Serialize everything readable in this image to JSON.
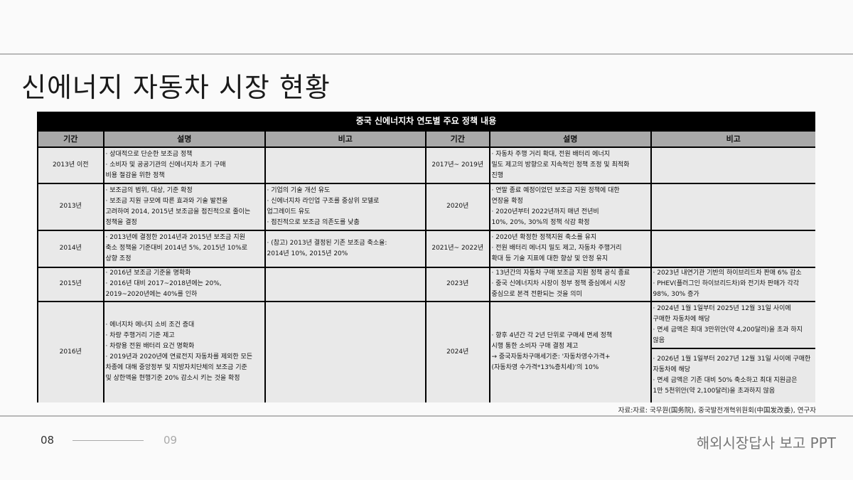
{
  "title": "신에너지 자동차 시장 현황",
  "table": {
    "caption": "중국 신에너지차 연도별 주요 정책 내용",
    "headers": [
      "기간",
      "설명",
      "비고",
      "기간",
      "설명",
      "비고"
    ],
    "left_rows": [
      {
        "period": "2013년 이전",
        "desc": [
          "· 상대적으로 단순한 보조금 정책",
          "· 소비자 및 공공기관의 신에너지차 초기 구매",
          "비용 절감을 위한 정책"
        ],
        "note": []
      },
      {
        "period": "2013년",
        "desc": [
          "· 보조금의 범위, 대상, 기준 확정",
          "· 보조금 지원 규모에 따른 효과와 기술 발전을",
          "고려하여 2014, 2015년 보조금을 점진적으로 줄이는",
          "정책을 결정"
        ],
        "note": [
          "· 기업의 기술 개선 유도",
          "· 신에너지차 라인업 구조를 중상위 모델로",
          "업그레이드 유도",
          "· 점진적으로 보조금 의존도를 낮춤"
        ]
      },
      {
        "period": "2014년",
        "desc": [
          "· 2013년에 결정한 2014년과 2015년 보조금 지원",
          "축소 정책을 기준대비 2014년 5%, 2015년 10%로",
          "상향 조정"
        ],
        "note": [
          "· (참고) 2013년 결정된 기존 보조금 축소율:",
          "2014년 10%, 2015년 20%"
        ]
      },
      {
        "period": "2015년",
        "desc": [
          "· 2016년 보조금 기준을 명확화",
          "· 2016년 대비 2017~2018년에는 20%,",
          "2019~2020년에는 40%를 인하"
        ],
        "note": []
      },
      {
        "period": "2016년",
        "desc": [
          "· 에너지차 에너지 소비 조건 증대",
          "· 차량 주행거리 기준 제고",
          "· 차량용 전원 배터리 요건 명확화",
          "· 2019년과 2020년에 연료전지 자동차를 제외한 모든",
          "차종에 대해 중앙정부 및 지방자치단체의 보조금 기준",
          "및 상한액을 현행기준 20% 감소시 키는 것을 확정"
        ],
        "note": []
      }
    ],
    "right_rows": [
      {
        "period": "2017년~ 2019년",
        "desc": [
          "· 자동차 주행 거리 확대, 전원 배터리 에너지",
          "밀도 제고의 방향으로 지속적인 정책 조정 및 최적화",
          "진행"
        ],
        "note": []
      },
      {
        "period": "2020년",
        "desc": [
          "· 연말 종료 예정이었던 보조금 지원 정책에 대한",
          "연장을 확정",
          "· 2020년부터 2022년까지 매년 전년비",
          " 10%, 20%, 30%의 정책 삭감 확정"
        ],
        "note": []
      },
      {
        "period": "2021년~ 2022년",
        "desc": [
          "· 2020년 확정한 정책지원 축소를 유지",
          "· 전원 배터리 에너지 밀도 제고, 자동차 주행거리",
          "확대 등 기술 지표에 대한 향상 및 안정 유지"
        ],
        "note": []
      },
      {
        "period": "2023년",
        "desc": [
          "· 13년간의 자동차 구매 보조금 지원 정책 공식 종료",
          "· 중국 신에너지차 시장이 정부 정책 중심에서 시장",
          "중심으로 본격 전환되는 것을 의미"
        ],
        "note": [
          "· 2023년 내연기관 기반의 하이브리드차 판매 6% 감소",
          "· PHEV(플러그인 하이브리드차)와 전기차 판매가 각각",
          "98%, 30% 증가"
        ]
      },
      {
        "period": "2024년",
        "desc": [
          "· 향후 4년간 각 2년 단위로 구매세 면세 정책",
          "시행 통한 소비자 구매 결정 제고",
          " → 중국자동차구매세기준: '자동차영수가격+",
          "(자동차영 수가격*13%증치세)'의 10%"
        ],
        "note": [
          "· 2024년 1월 1일부터 2025년 12월 31일 사이에",
          "구매한 자동차에 해당",
          "· 면세 금액은 최대 3만위안(약 4,200달러)을 초과 하지",
          "않음"
        ],
        "note2": [
          "· 2026년 1월 1일부터 2027년 12월 31일 사이에 구매한",
          "자동차에 해당",
          "· 면세 금액은 기존 대비 50% 축소하고 최대 지원금은",
          "1만 5천위안(약 2,100달러)을 초과하지 않음"
        ]
      }
    ]
  },
  "source": "자료:자료: 국무원(国务院), 중국발전개혁위원회(中国发改委), 연구자",
  "footer": {
    "page_current": "08",
    "page_next": "09",
    "brand": "해외시장답사 보고 PPT"
  }
}
